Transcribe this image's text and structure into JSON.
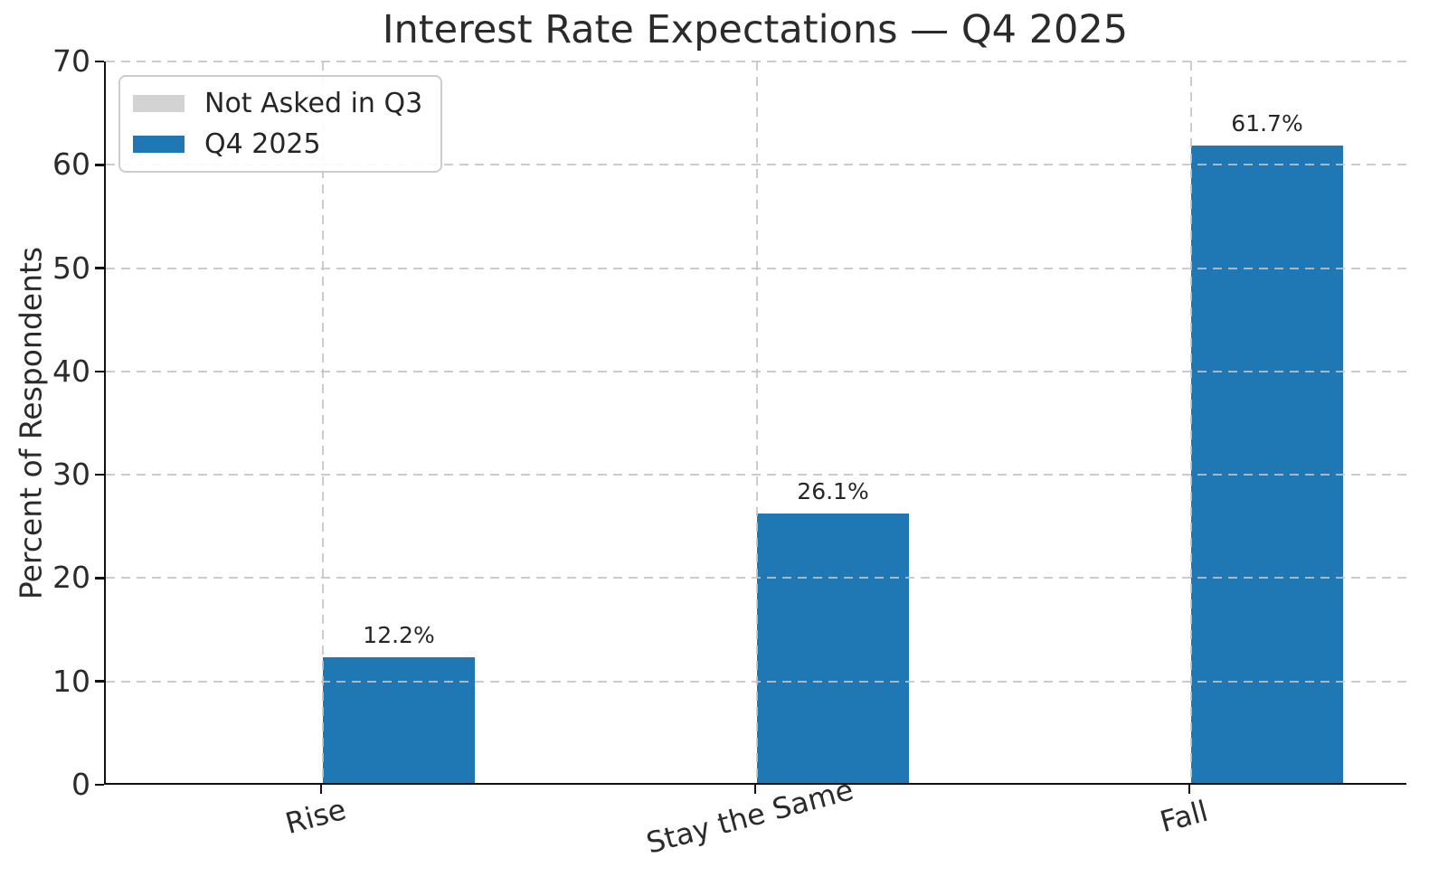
{
  "chart_data": {
    "type": "bar",
    "title": "Interest Rate Expectations — Q4 2025",
    "xlabel": "",
    "ylabel": "Percent of Respondents",
    "categories": [
      "Rise",
      "Stay the Same",
      "Fall"
    ],
    "series": [
      {
        "name": "Not Asked in Q3",
        "color": "#d3d3d3",
        "values": [
          null,
          null,
          null
        ]
      },
      {
        "name": "Q4 2025",
        "color": "#1f77b4",
        "values": [
          12.2,
          26.1,
          61.7
        ]
      }
    ],
    "value_labels": [
      "12.2%",
      "26.1%",
      "61.7%"
    ],
    "ylim": [
      0,
      70
    ],
    "yticks": [
      0,
      10,
      20,
      30,
      40,
      50,
      60,
      70
    ],
    "grid": true,
    "grid_style": "dashed",
    "legend_position": "upper left",
    "bar_width_units": 0.35,
    "x_tick_rotation_deg": 15
  },
  "colors": {
    "accent_blue": "#1f77b4",
    "not_asked_gray": "#d3d3d3",
    "grid": "#c8c8c8",
    "spine": "#111111",
    "text": "#262626"
  }
}
